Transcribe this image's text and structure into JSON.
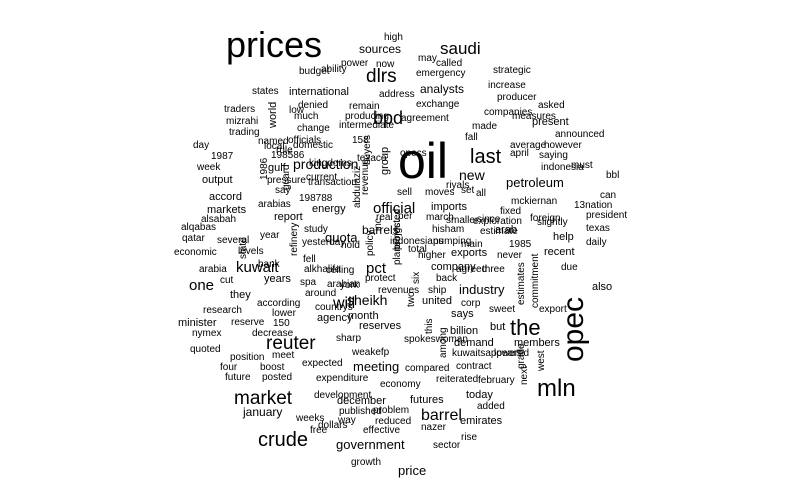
{
  "words": [
    {
      "text": "oil",
      "r": 0
    },
    {
      "text": "prices",
      "r": 0
    },
    {
      "text": "opec",
      "r": 1
    },
    {
      "text": "mln",
      "r": 0
    },
    {
      "text": "the",
      "r": 0
    },
    {
      "text": "crude",
      "r": 0
    },
    {
      "text": "last",
      "r": 0
    },
    {
      "text": "market",
      "r": 0
    },
    {
      "text": "reuter",
      "r": 0
    },
    {
      "text": "dlrs",
      "r": 0
    },
    {
      "text": "bpd",
      "r": 0
    },
    {
      "text": "saudi",
      "r": 0
    },
    {
      "text": "barrel",
      "r": 0
    },
    {
      "text": "will",
      "r": 0
    },
    {
      "text": "official",
      "r": 0
    },
    {
      "text": "kuwait",
      "r": 0
    },
    {
      "text": "one",
      "r": 0
    },
    {
      "text": "pct",
      "r": 0
    },
    {
      "text": "new",
      "r": 0
    },
    {
      "text": "production",
      "r": 0
    },
    {
      "text": "sheikh",
      "r": 0
    },
    {
      "text": "government",
      "r": 0
    },
    {
      "text": "price",
      "r": 0
    },
    {
      "text": "meeting",
      "r": 0
    },
    {
      "text": "petroleum",
      "r": 0
    },
    {
      "text": "quota",
      "r": 0
    },
    {
      "text": "industry",
      "r": 0
    },
    {
      "text": "barrels",
      "r": 0
    },
    {
      "text": "analysts",
      "r": 0
    },
    {
      "text": "january",
      "r": 0
    },
    {
      "text": "sources",
      "r": 0
    },
    {
      "text": "international",
      "r": 0
    },
    {
      "text": "today",
      "r": 0
    },
    {
      "text": "futures",
      "r": 0
    },
    {
      "text": "december",
      "r": 0
    },
    {
      "text": "report",
      "r": 0
    },
    {
      "text": "output",
      "r": 0
    },
    {
      "text": "accord",
      "r": 0
    },
    {
      "text": "markets",
      "r": 0
    },
    {
      "text": "month",
      "r": 0
    },
    {
      "text": "minister",
      "r": 0
    },
    {
      "text": "billion",
      "r": 0
    },
    {
      "text": "also",
      "r": 0
    },
    {
      "text": "says",
      "r": 0
    },
    {
      "text": "gulf",
      "r": 0
    },
    {
      "text": "energy",
      "r": 0
    },
    {
      "text": "group",
      "r": 1
    },
    {
      "text": "world",
      "r": 1
    },
    {
      "text": "years",
      "r": 0
    },
    {
      "text": "they",
      "r": 0
    },
    {
      "text": "but",
      "r": 0
    },
    {
      "text": "emirates",
      "r": 0
    },
    {
      "text": "agency",
      "r": 0
    },
    {
      "text": "reserves",
      "r": 0
    },
    {
      "text": "members",
      "r": 0
    },
    {
      "text": "demand",
      "r": 0
    },
    {
      "text": "recent",
      "r": 0
    },
    {
      "text": "present",
      "r": 0
    },
    {
      "text": "imports",
      "r": 0
    },
    {
      "text": "exports",
      "r": 0
    },
    {
      "text": "company",
      "r": 0
    },
    {
      "text": "united",
      "r": 0
    },
    {
      "text": "arab",
      "r": 0
    },
    {
      "text": "help",
      "r": 0
    },
    {
      "text": "emergency",
      "r": 0
    },
    {
      "text": "exchange",
      "r": 0
    },
    {
      "text": "agreement",
      "r": 0
    },
    {
      "text": "expected",
      "r": 0
    },
    {
      "text": "economy",
      "r": 0
    },
    {
      "text": "expenditure",
      "r": 0
    },
    {
      "text": "research",
      "r": 0
    },
    {
      "text": "reserve",
      "r": 0
    },
    {
      "text": "quoted",
      "r": 0
    },
    {
      "text": "nymex",
      "r": 0
    },
    {
      "text": "economic",
      "r": 0
    },
    {
      "text": "arabia",
      "r": 0
    },
    {
      "text": "ceiling",
      "r": 0
    },
    {
      "text": "according",
      "r": 0
    },
    {
      "text": "traders",
      "r": 0
    },
    {
      "text": "week",
      "r": 0
    },
    {
      "text": "states",
      "r": 0
    },
    {
      "text": "now",
      "r": 0
    },
    {
      "text": "may",
      "r": 0
    },
    {
      "text": "increase",
      "r": 0
    },
    {
      "text": "sell",
      "r": 0
    },
    {
      "text": "riyals",
      "r": 0
    },
    {
      "text": "contract",
      "r": 0
    },
    {
      "text": "way",
      "r": 0
    },
    {
      "text": "nazer",
      "r": 0
    },
    {
      "text": "growth",
      "r": 0
    },
    {
      "text": "posted",
      "r": 0
    },
    {
      "text": "yesterday",
      "r": 0
    },
    {
      "text": "study",
      "r": 0
    },
    {
      "text": "year",
      "r": 0
    },
    {
      "text": "qatar",
      "r": 0
    },
    {
      "text": "texas",
      "r": 0
    },
    {
      "text": "daily",
      "r": 0
    },
    {
      "text": "due",
      "r": 0
    },
    {
      "text": "foreign",
      "r": 0
    },
    {
      "text": "exploration",
      "r": 0
    },
    {
      "text": "hold",
      "r": 0
    },
    {
      "text": "april",
      "r": 0
    },
    {
      "text": "fixed",
      "r": 0
    },
    {
      "text": "corp",
      "r": 0
    },
    {
      "text": "sweet",
      "r": 0
    },
    {
      "text": "sharp",
      "r": 0
    },
    {
      "text": "development",
      "r": 0
    },
    {
      "text": "problem",
      "r": 0
    },
    {
      "text": "reduced",
      "r": 0
    },
    {
      "text": "effective",
      "r": 0
    },
    {
      "text": "published",
      "r": 0
    },
    {
      "text": "free",
      "r": 0
    },
    {
      "text": "rise",
      "r": 0
    },
    {
      "text": "sector",
      "r": 0
    },
    {
      "text": "compared",
      "r": 0
    },
    {
      "text": "reiterated",
      "r": 0
    },
    {
      "text": "february",
      "r": 0
    },
    {
      "text": "added",
      "r": 0
    },
    {
      "text": "kuwaitsappears",
      "r": 0
    },
    {
      "text": "lowered",
      "r": 0
    },
    {
      "text": "weakefp",
      "r": 0
    },
    {
      "text": "spokeswoman",
      "r": 0
    },
    {
      "text": "ship",
      "r": 0
    },
    {
      "text": "back",
      "r": 0
    },
    {
      "text": "agreed",
      "r": 0
    },
    {
      "text": "three",
      "r": 0
    },
    {
      "text": "higher",
      "r": 0
    },
    {
      "text": "never",
      "r": 0
    },
    {
      "text": "protect",
      "r": 0
    },
    {
      "text": "revenues",
      "r": 0
    },
    {
      "text": "indonesians",
      "r": 0
    },
    {
      "text": "pumping",
      "r": 0
    },
    {
      "text": "total",
      "r": 0
    },
    {
      "text": "hisham",
      "r": 0
    },
    {
      "text": "main",
      "r": 0
    },
    {
      "text": "1985",
      "r": 0
    },
    {
      "text": "estimate",
      "r": 0
    },
    {
      "text": "smaller",
      "r": 0
    },
    {
      "text": "march",
      "r": 0
    },
    {
      "text": "since",
      "r": 0
    },
    {
      "text": "per",
      "r": 0
    },
    {
      "text": "real",
      "r": 0
    },
    {
      "text": "moves",
      "r": 0
    },
    {
      "text": "set",
      "r": 0
    },
    {
      "text": "opecs",
      "r": 0
    },
    {
      "text": "all",
      "r": 0
    },
    {
      "text": "mckiernan",
      "r": 0
    },
    {
      "text": "13nation",
      "r": 0
    },
    {
      "text": "president",
      "r": 0
    },
    {
      "text": "alsabah",
      "r": 0
    },
    {
      "text": "alqabas",
      "r": 0
    },
    {
      "text": "several",
      "r": 0
    },
    {
      "text": "levels",
      "r": 0
    },
    {
      "text": "cut",
      "r": 0
    },
    {
      "text": "bank",
      "r": 0
    },
    {
      "text": "around",
      "r": 0
    },
    {
      "text": "alkhalifa",
      "r": 0
    },
    {
      "text": "spa",
      "r": 0
    },
    {
      "text": "fell",
      "r": 0
    },
    {
      "text": "arabian",
      "r": 0
    },
    {
      "text": "york",
      "r": 0
    },
    {
      "text": "countrys",
      "r": 0
    },
    {
      "text": "lower",
      "r": 0
    },
    {
      "text": "150",
      "r": 0
    },
    {
      "text": "decrease",
      "r": 0
    },
    {
      "text": "position",
      "r": 0
    },
    {
      "text": "meet",
      "r": 0
    },
    {
      "text": "four",
      "r": 0
    },
    {
      "text": "boost",
      "r": 0
    },
    {
      "text": "future",
      "r": 0
    },
    {
      "text": "weeks",
      "r": 0
    },
    {
      "text": "dollars",
      "r": 0
    },
    {
      "text": "198788",
      "r": 0
    },
    {
      "text": "arabias",
      "r": 0
    },
    {
      "text": "say",
      "r": 0
    },
    {
      "text": "transaction",
      "r": 0
    },
    {
      "text": "pressure",
      "r": 0
    },
    {
      "text": "current",
      "r": 0
    },
    {
      "text": "kingdoms",
      "r": 0
    },
    {
      "text": "texaco",
      "r": 0
    },
    {
      "text": "198586",
      "r": 0
    },
    {
      "text": "rule",
      "r": 0
    },
    {
      "text": "local",
      "r": 0
    },
    {
      "text": "domestic",
      "r": 0
    },
    {
      "text": "1987",
      "r": 0
    },
    {
      "text": "day",
      "r": 0
    },
    {
      "text": "trading",
      "r": 0
    },
    {
      "text": "mizrahi",
      "r": 0
    },
    {
      "text": "named",
      "r": 0
    },
    {
      "text": "officials",
      "r": 0
    },
    {
      "text": "158",
      "r": 0
    },
    {
      "text": "intermediate",
      "r": 0
    },
    {
      "text": "producing",
      "r": 0
    },
    {
      "text": "remain",
      "r": 0
    },
    {
      "text": "denied",
      "r": 0
    },
    {
      "text": "much",
      "r": 0
    },
    {
      "text": "change",
      "r": 0
    },
    {
      "text": "address",
      "r": 0
    },
    {
      "text": "ability",
      "r": 0
    },
    {
      "text": "budget",
      "r": 0
    },
    {
      "text": "power",
      "r": 0
    },
    {
      "text": "high",
      "r": 0
    },
    {
      "text": "called",
      "r": 0
    },
    {
      "text": "strategic",
      "r": 0
    },
    {
      "text": "producer",
      "r": 0
    },
    {
      "text": "asked",
      "r": 0
    },
    {
      "text": "companies",
      "r": 0
    },
    {
      "text": "measures",
      "r": 0
    },
    {
      "text": "made",
      "r": 0
    },
    {
      "text": "fall",
      "r": 0
    },
    {
      "text": "announced",
      "r": 0
    },
    {
      "text": "average",
      "r": 0
    },
    {
      "text": "however",
      "r": 0
    },
    {
      "text": "saying",
      "r": 0
    },
    {
      "text": "indonesia",
      "r": 0
    },
    {
      "text": "must",
      "r": 0
    },
    {
      "text": "can",
      "r": 0
    },
    {
      "text": "slightly",
      "r": 0
    },
    {
      "text": "export",
      "r": 0
    },
    {
      "text": "commitment",
      "r": 1
    },
    {
      "text": "estimates",
      "r": 1
    },
    {
      "text": "next",
      "r": 1
    },
    {
      "text": "grade",
      "r": 1
    },
    {
      "text": "west",
      "r": 1
    },
    {
      "text": "bbl",
      "r": 0
    },
    {
      "text": "low",
      "r": 0
    },
    {
      "text": "guard",
      "r": 1
    },
    {
      "text": "1986",
      "r": 1
    },
    {
      "text": "state",
      "r": 1
    },
    {
      "text": "refinery",
      "r": 1
    },
    {
      "text": "plans",
      "r": 1
    },
    {
      "text": "policy",
      "r": 1
    },
    {
      "text": "inc",
      "r": 1
    },
    {
      "text": "abdulaziz",
      "r": 1
    },
    {
      "text": "revenue",
      "r": 1
    },
    {
      "text": "buyers",
      "r": 1
    },
    {
      "text": "six",
      "r": 1
    },
    {
      "text": "two",
      "r": 1
    },
    {
      "text": "this",
      "r": 1
    },
    {
      "text": "among",
      "r": 1
    },
    {
      "text": "brings",
      "r": 1
    },
    {
      "text": "projected",
      "r": 1
    }
  ]
}
